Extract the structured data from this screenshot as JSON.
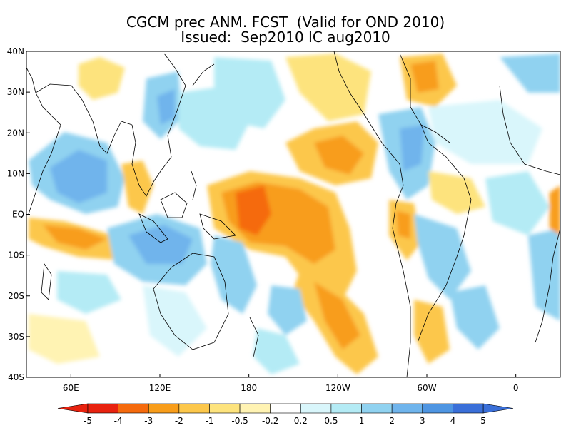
{
  "title": {
    "line1": "CGCM prec ANM. FCST  (Valid for OND 2010)",
    "line2": "Issued:  Sep2010 IC aug2010"
  },
  "axes": {
    "lat_labels": [
      "40N",
      "30N",
      "20N",
      "10N",
      "EQ",
      "10S",
      "20S",
      "30S",
      "40S"
    ],
    "lon_labels": [
      "60E",
      "120E",
      "180",
      "120W",
      "60W",
      "0"
    ]
  },
  "colorbar": {
    "tick_labels": [
      "-5",
      "-4",
      "-3",
      "-2",
      "-1",
      "-0.5",
      "-0.2",
      "0.2",
      "0.5",
      "1",
      "2",
      "3",
      "4",
      "5"
    ],
    "colors": [
      "#e8220f",
      "#f56a0d",
      "#f89d1a",
      "#fcc74b",
      "#fde37d",
      "#fff3b3",
      "#ffffff",
      "#d9f6fb",
      "#b4ebf5",
      "#90d2f0",
      "#6fb4ec",
      "#4e95e2",
      "#3a6fd8"
    ]
  },
  "map": {
    "lon_range": [
      30,
      390
    ],
    "lat_range": [
      -40,
      40
    ],
    "palette": {
      "orange_dark": "#f56a0d",
      "orange": "#f89d1a",
      "yellow": "#fcc74b",
      "yellow_light": "#fde37d",
      "cream": "#fff3b3",
      "cyan_light": "#d9f6fb",
      "cyan": "#b4ebf5",
      "blue_light": "#90d2f0",
      "blue": "#6fb4ec",
      "blue_dark": "#4e95e2"
    }
  }
}
